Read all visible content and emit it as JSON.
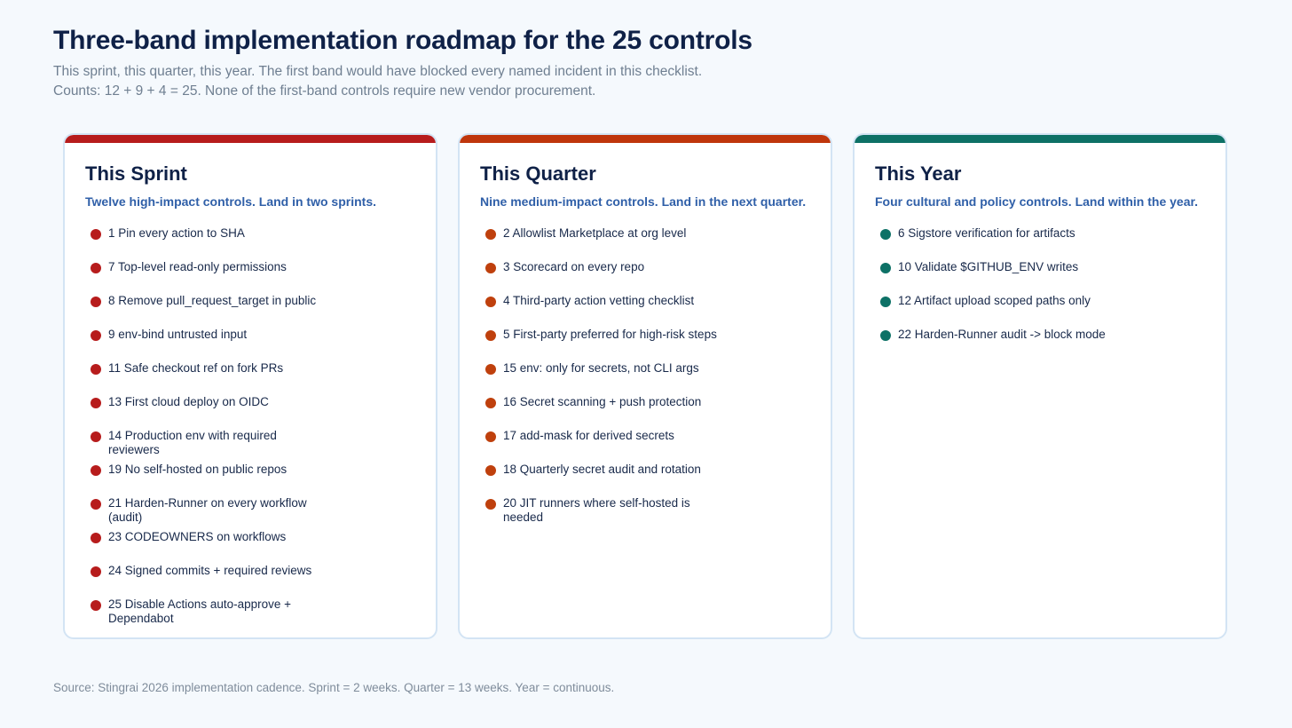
{
  "title": "Three-band implementation roadmap for the 25 controls",
  "subtitle_line1": "This sprint, this quarter, this year. The first band would have blocked every named incident in this checklist.",
  "subtitle_line2": "Counts: 12 + 9 + 4 = 25. None of the first-band controls require new vendor procurement.",
  "footer": "Source: Stingrai 2026 implementation cadence. Sprint = 2 weeks. Quarter = 13 weeks. Year = continuous.",
  "bands": [
    {
      "title": "This Sprint",
      "subtitle": "Twelve high-impact controls. Land in two sprints.",
      "accent": "#b71c1c",
      "dot": "#b71c1c",
      "items": [
        "1 Pin every action to SHA",
        "7 Top-level read-only permissions",
        "8 Remove pull_request_target in public",
        "9 env-bind untrusted input",
        "11 Safe checkout ref on fork PRs",
        "13 First cloud deploy on OIDC",
        "14 Production env with required reviewers",
        "19 No self-hosted on public repos",
        "21 Harden-Runner on every workflow (audit)",
        "23 CODEOWNERS on workflows",
        "24 Signed commits + required reviews",
        "25 Disable Actions auto-approve + Dependabot"
      ]
    },
    {
      "title": "This Quarter",
      "subtitle": "Nine medium-impact controls. Land in the next quarter.",
      "accent": "#bf360c",
      "dot": "#bf400d",
      "items": [
        "2 Allowlist Marketplace at org level",
        "3 Scorecard on every repo",
        "4 Third-party action vetting checklist",
        "5 First-party preferred for high-risk steps",
        "15 env: only for secrets, not CLI args",
        "16 Secret scanning + push protection",
        "17 add-mask for derived secrets",
        "18 Quarterly secret audit and rotation",
        "20 JIT runners where self-hosted is needed"
      ]
    },
    {
      "title": "This Year",
      "subtitle": "Four cultural and policy controls. Land within the year.",
      "accent": "#0d7166",
      "dot": "#0d7166",
      "items": [
        "6 Sigstore verification for artifacts",
        "10 Validate $GITHUB_ENV writes",
        "12 Artifact upload scoped paths only",
        "22 Harden-Runner audit -> block mode"
      ]
    }
  ]
}
